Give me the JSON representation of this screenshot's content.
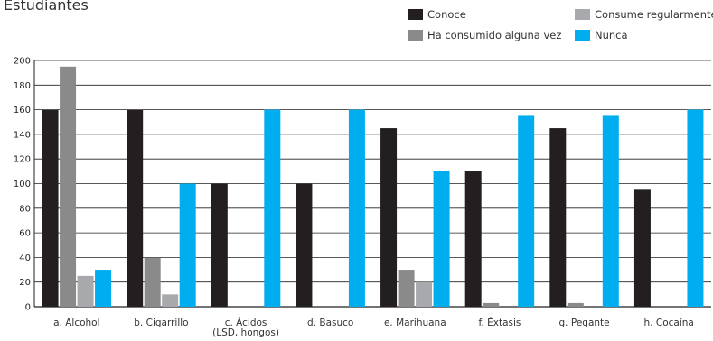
{
  "chart_data": {
    "type": "bar",
    "title": "Estudiantes",
    "categories": [
      "a. Alcohol",
      "b. Cigarrillo",
      "c. Ácidos\n(LSD, hongos)",
      "d. Basuco",
      "e. Marihuana",
      "f. Éxtasis",
      "g. Pegante",
      "h. Cocaína"
    ],
    "series": [
      {
        "name": "Conoce",
        "color": "#231f20",
        "values": [
          160,
          160,
          100,
          100,
          145,
          110,
          145,
          95
        ]
      },
      {
        "name": "Ha consumido alguna vez",
        "color": "#8a8a8a",
        "values": [
          195,
          40,
          0,
          0,
          30,
          3,
          3,
          0
        ]
      },
      {
        "name": "Consume regularmente",
        "color": "#a7a9ac",
        "values": [
          25,
          10,
          0,
          0,
          20,
          0,
          0,
          0
        ]
      },
      {
        "name": "Nunca",
        "color": "#00aeef",
        "values": [
          30,
          100,
          160,
          160,
          110,
          155,
          155,
          160
        ]
      }
    ],
    "ylim": [
      0,
      200
    ],
    "yticks": [
      0,
      20,
      40,
      60,
      80,
      100,
      120,
      140,
      160,
      180,
      200
    ],
    "grid": true,
    "legend": "top-right"
  }
}
